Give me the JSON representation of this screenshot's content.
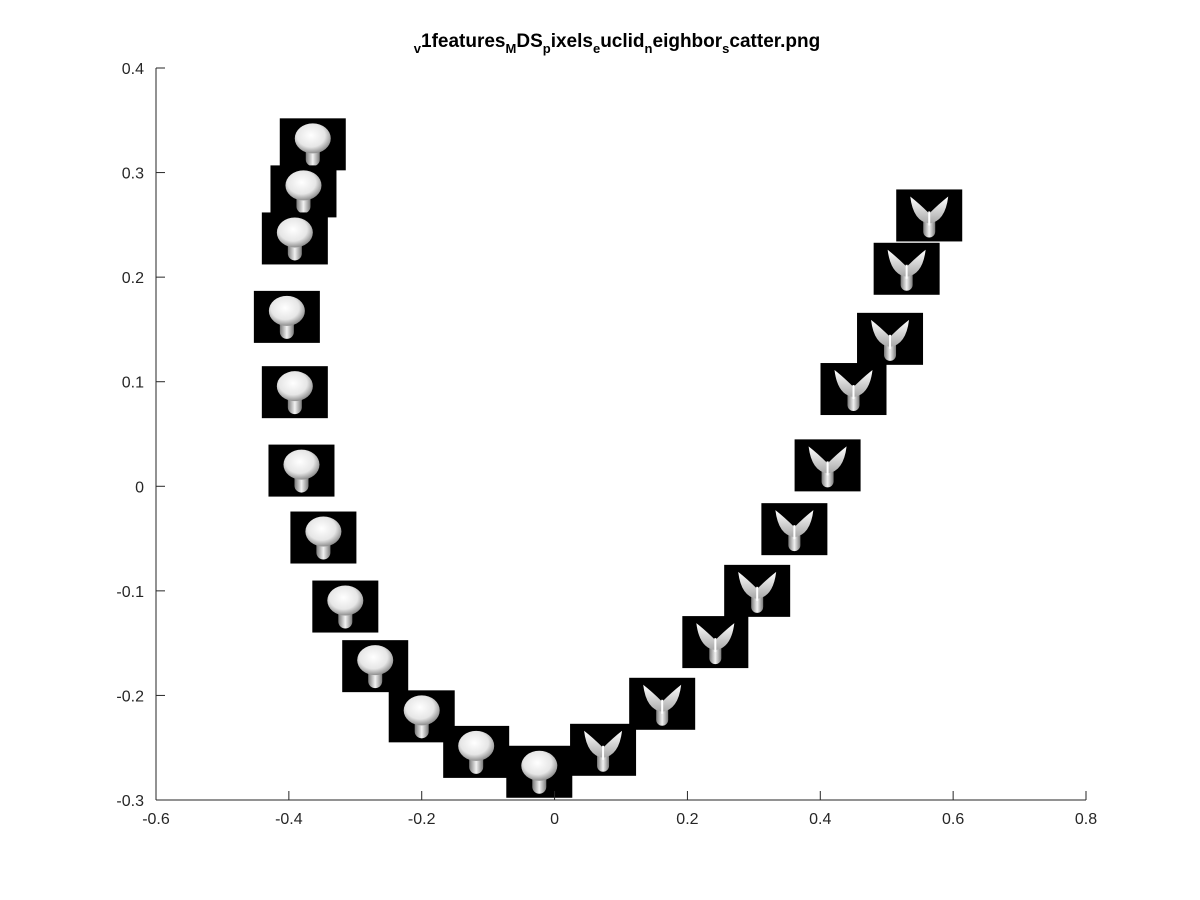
{
  "chart_data": {
    "type": "scatter",
    "marker": "image-thumbnail",
    "title_parts": [
      {
        "text": "v",
        "style": "sub"
      },
      {
        "text": "1features",
        "style": "normal"
      },
      {
        "text": "M",
        "style": "sub"
      },
      {
        "text": "DS",
        "style": "normal"
      },
      {
        "text": "p",
        "style": "sub"
      },
      {
        "text": "ixels",
        "style": "normal"
      },
      {
        "text": "e",
        "style": "sub"
      },
      {
        "text": "uclid",
        "style": "normal"
      },
      {
        "text": "n",
        "style": "sub"
      },
      {
        "text": "eighbor",
        "style": "normal"
      },
      {
        "text": "s",
        "style": "sub"
      },
      {
        "text": "catter.png",
        "style": "normal"
      }
    ],
    "xlim": [
      -0.6,
      0.8
    ],
    "ylim": [
      -0.3,
      0.4
    ],
    "x_ticks": [
      -0.6,
      -0.4,
      -0.2,
      0,
      0.2,
      0.4,
      0.6,
      0.8
    ],
    "x_tick_labels": [
      "-0.6",
      "-0.4",
      "-0.2",
      "0",
      "0.2",
      "0.4",
      "0.6",
      "0.8"
    ],
    "y_ticks": [
      -0.3,
      -0.2,
      -0.1,
      0,
      0.1,
      0.2,
      0.3,
      0.4
    ],
    "y_tick_labels": [
      "-0.3",
      "-0.2",
      "-0.1",
      "0",
      "0.1",
      "0.2",
      "0.3",
      "0.4"
    ],
    "grid": false,
    "thumbnail_background": "#000000",
    "points": [
      {
        "x": -0.364,
        "y": 0.327,
        "shape": "mushroom"
      },
      {
        "x": -0.378,
        "y": 0.282,
        "shape": "mushroom"
      },
      {
        "x": -0.391,
        "y": 0.237,
        "shape": "mushroom"
      },
      {
        "x": -0.403,
        "y": 0.162,
        "shape": "mushroom"
      },
      {
        "x": -0.391,
        "y": 0.09,
        "shape": "mushroom"
      },
      {
        "x": -0.381,
        "y": 0.015,
        "shape": "mushroom"
      },
      {
        "x": -0.348,
        "y": -0.049,
        "shape": "mushroom"
      },
      {
        "x": -0.315,
        "y": -0.115,
        "shape": "mushroom"
      },
      {
        "x": -0.27,
        "y": -0.172,
        "shape": "mushroom"
      },
      {
        "x": -0.2,
        "y": -0.22,
        "shape": "mushroom"
      },
      {
        "x": -0.118,
        "y": -0.254,
        "shape": "mushroom"
      },
      {
        "x": -0.023,
        "y": -0.273,
        "shape": "mushroom"
      },
      {
        "x": 0.073,
        "y": -0.252,
        "shape": "wing"
      },
      {
        "x": 0.162,
        "y": -0.208,
        "shape": "wing"
      },
      {
        "x": 0.242,
        "y": -0.149,
        "shape": "wing"
      },
      {
        "x": 0.305,
        "y": -0.1,
        "shape": "wing"
      },
      {
        "x": 0.361,
        "y": -0.041,
        "shape": "wing"
      },
      {
        "x": 0.411,
        "y": 0.02,
        "shape": "wing"
      },
      {
        "x": 0.45,
        "y": 0.093,
        "shape": "wing"
      },
      {
        "x": 0.505,
        "y": 0.141,
        "shape": "wing"
      },
      {
        "x": 0.53,
        "y": 0.208,
        "shape": "wing"
      },
      {
        "x": 0.564,
        "y": 0.259,
        "shape": "wing"
      }
    ]
  }
}
